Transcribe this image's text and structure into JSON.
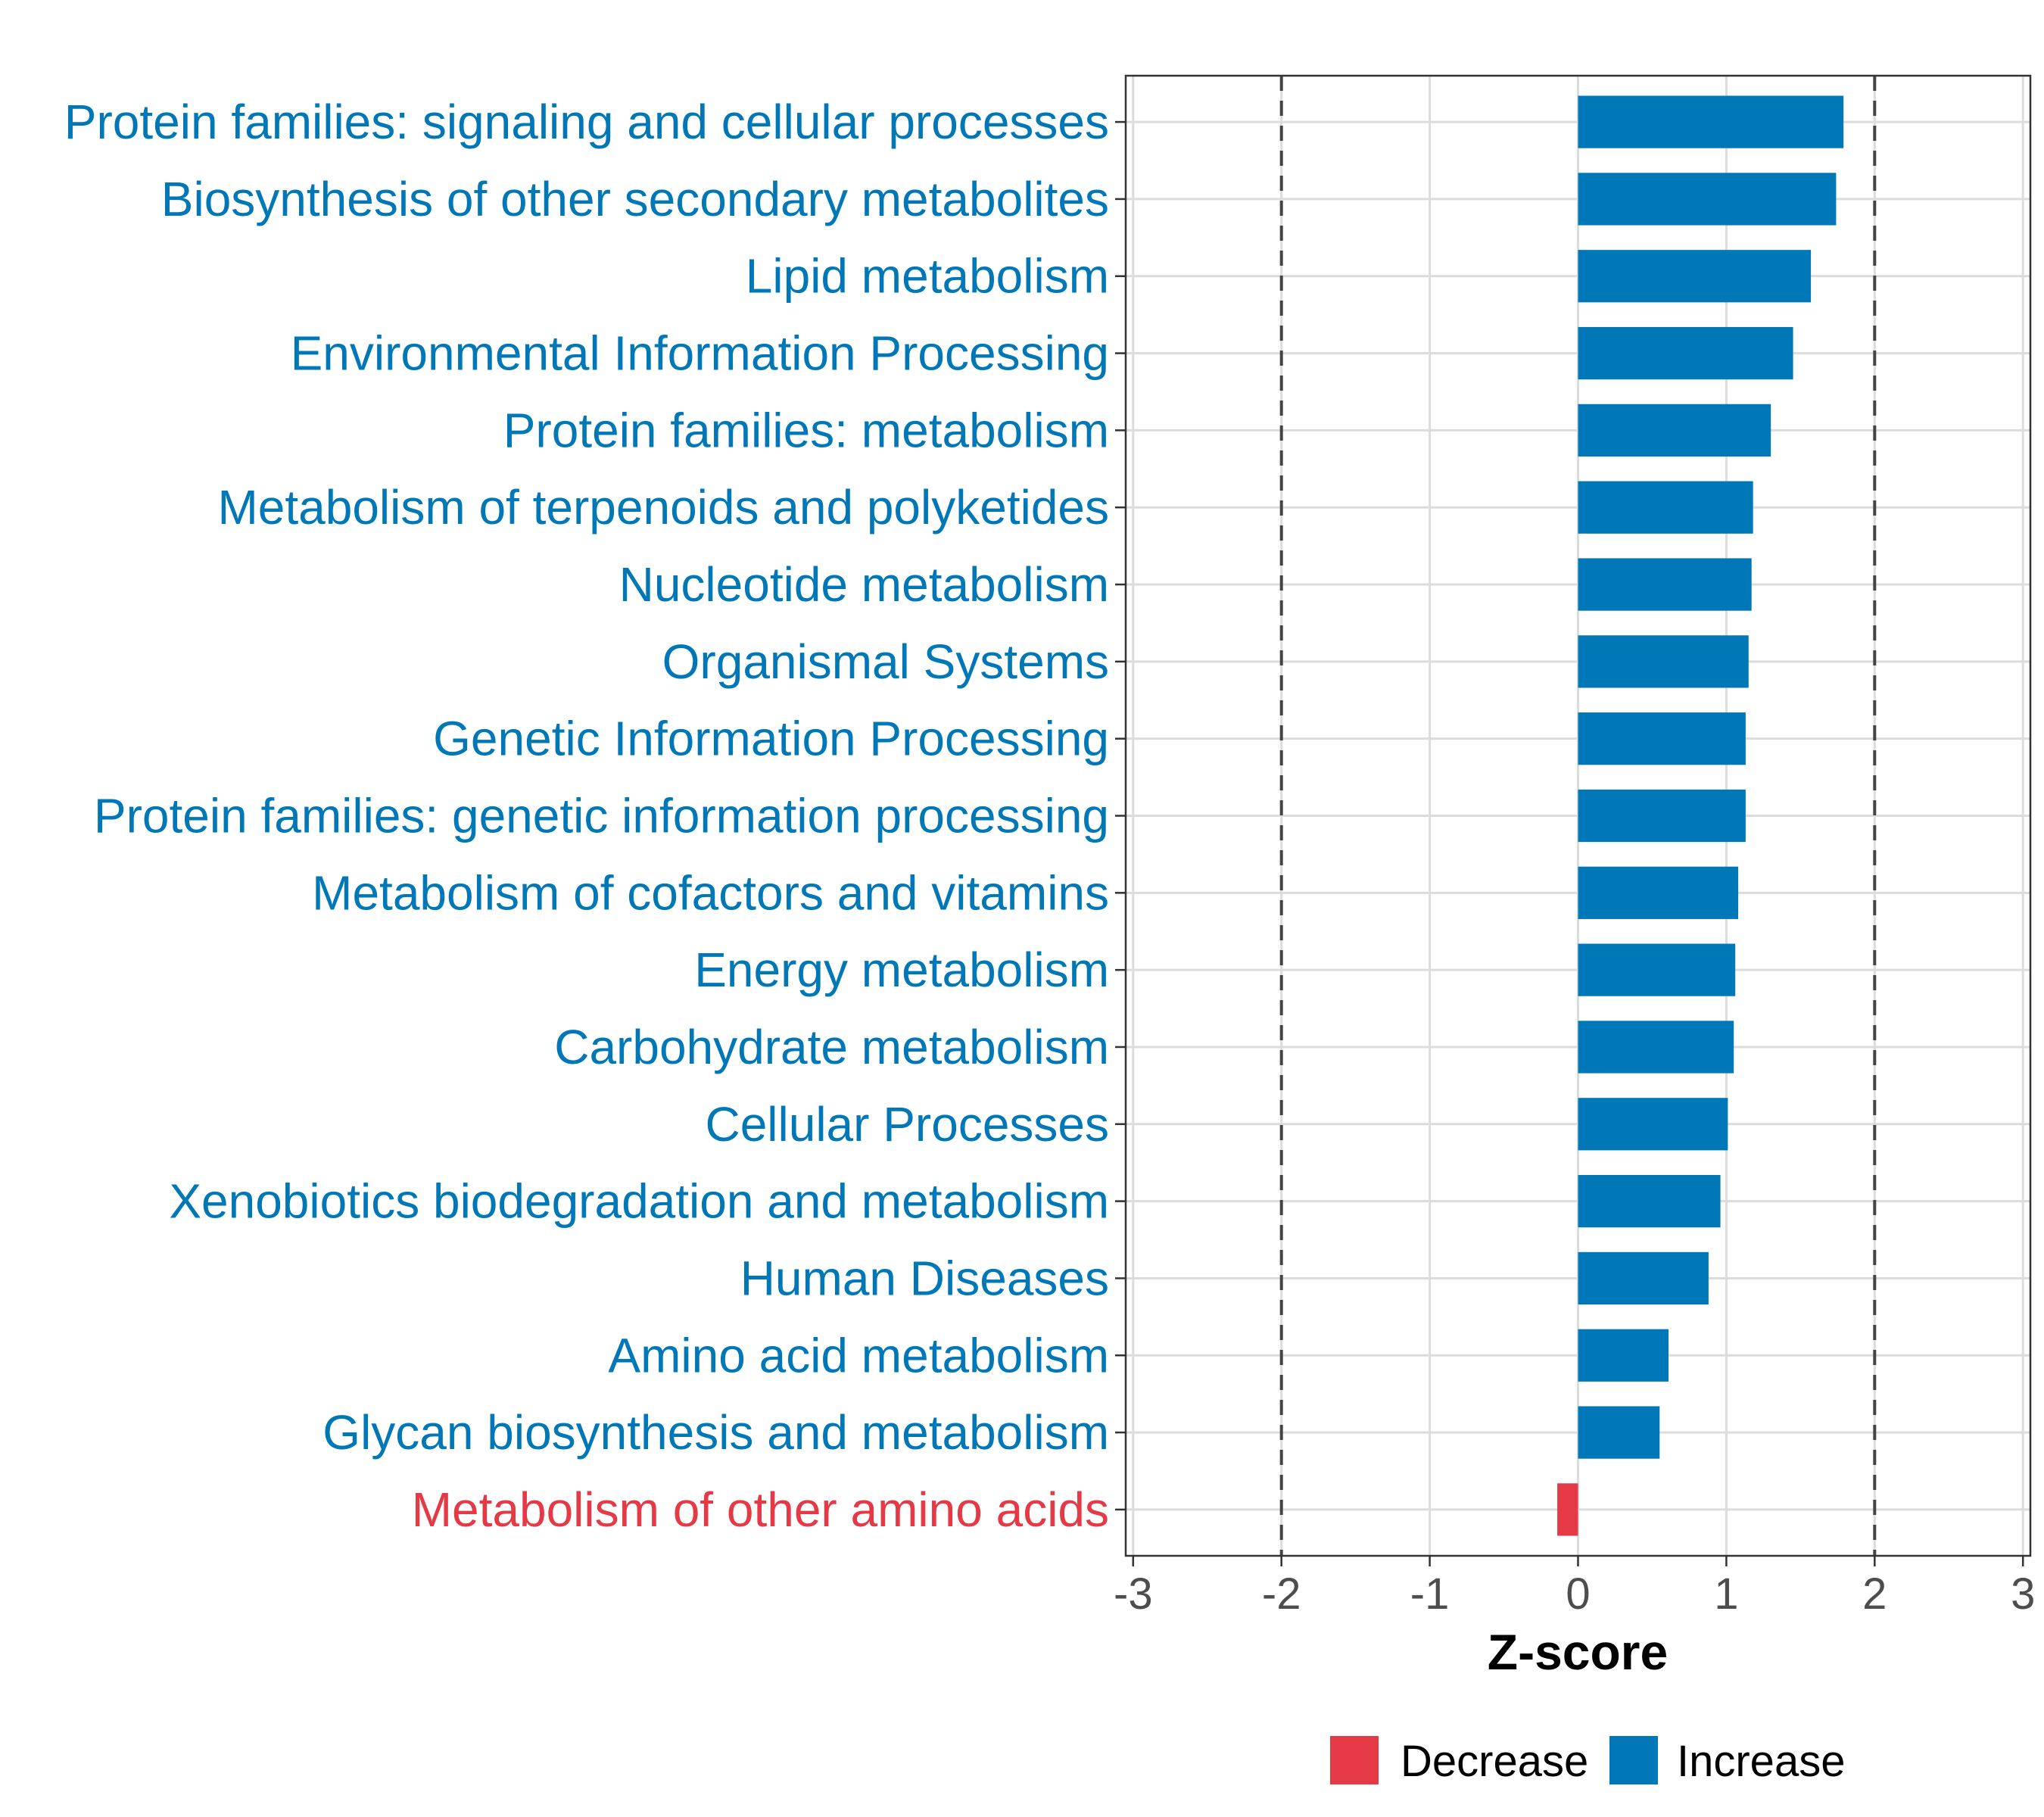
{
  "chart_data": {
    "type": "bar",
    "orientation": "horizontal",
    "xlabel": "Z-score",
    "ylabel": "",
    "xlim": [
      -3.05,
      3.05
    ],
    "x_ticks": [
      -3,
      -2,
      -1,
      0,
      1,
      2,
      3
    ],
    "x_tick_labels": [
      "-3",
      "-2",
      "-1",
      "0",
      "1",
      "2",
      "3"
    ],
    "reference_lines": [
      -2,
      2
    ],
    "grid": true,
    "legend_position": "bottom",
    "colors": {
      "Decrease": "#e63946",
      "Increase": "#0077b6"
    },
    "legend": [
      {
        "label": "Decrease"
      },
      {
        "label": "Increase"
      }
    ],
    "categories": [
      "Protein families: signaling and cellular processes",
      "Biosynthesis of other secondary metabolites",
      "Lipid metabolism",
      "Environmental Information Processing",
      "Protein families: metabolism",
      "Metabolism of terpenoids and polyketides",
      "Nucleotide metabolism",
      "Organismal Systems",
      "Genetic Information Processing",
      "Protein families: genetic information processing",
      "Metabolism of cofactors and vitamins",
      "Energy metabolism",
      "Carbohydrate metabolism",
      "Cellular Processes",
      "Xenobiotics biodegradation and metabolism",
      "Human Diseases",
      "Amino acid metabolism",
      "Glycan biosynthesis and metabolism",
      "Metabolism of other amino acids"
    ],
    "values": [
      1.79,
      1.74,
      1.57,
      1.45,
      1.3,
      1.18,
      1.17,
      1.15,
      1.13,
      1.13,
      1.08,
      1.06,
      1.05,
      1.01,
      0.96,
      0.88,
      0.61,
      0.55,
      -0.14
    ],
    "directions": [
      "Increase",
      "Increase",
      "Increase",
      "Increase",
      "Increase",
      "Increase",
      "Increase",
      "Increase",
      "Increase",
      "Increase",
      "Increase",
      "Increase",
      "Increase",
      "Increase",
      "Increase",
      "Increase",
      "Increase",
      "Increase",
      "Decrease"
    ]
  }
}
